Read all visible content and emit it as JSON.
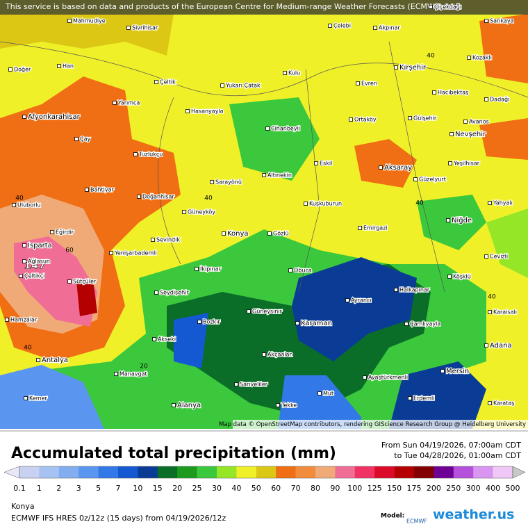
{
  "header": {
    "attribution": "This service is based on data and products of the European Centre for Medium-range Weather Forecasts (ECMWF)"
  },
  "map": {
    "cities": [
      "Çiçekdağı",
      "Mahmudiye",
      "Sivrihisar",
      "Çelebi",
      "Akpınar",
      "Sarıkaya",
      "Doğer",
      "Han",
      "Kulu",
      "Kırşehir",
      "Kozaklı",
      "Çeltik",
      "Yukarı Çatak",
      "Evren",
      "Hacıbektaş",
      "Yarımca",
      "Hasanyayla",
      "Dadağı",
      "Afyonkarahisar",
      "Cihanbeyli",
      "Ortaköy",
      "Gülşehir",
      "Avanos",
      "Nevşehir",
      "Çay",
      "Tuzlukçu",
      "Eskil",
      "Aksaray",
      "Yeşilhisar",
      "Altınekin",
      "Bahtiyar",
      "Sarayönü",
      "Güzelyurt",
      "Doğanhisar",
      "Uluborlu",
      "Kuşkuburun",
      "Yahyalı",
      "Güneyköy",
      "Niğde",
      "Eğirdir",
      "Konya",
      "Gözlü",
      "Emirgazi",
      "Isparta",
      "Sevindik",
      "Yenişarbademli",
      "Cevizli",
      "Ağlasun",
      "İkipınar",
      "Obuca",
      "Çeltikçi",
      "Sütçüler",
      "Köşklü",
      "Halkapınar",
      "Seydişehir",
      "Ayrancı",
      "Karaisalı",
      "Hamzalar",
      "Bozkır",
      "Güneysınır",
      "Karaman",
      "Çamlıyayla",
      "Akseki",
      "Adana",
      "Akçaalan",
      "Antalya",
      "Manavgat",
      "Mersin",
      "Ayaştürkmenli",
      "Sarıveliler",
      "Kemer",
      "Mut",
      "Erdemli",
      "Alanya",
      "Tekke",
      "Karataş"
    ],
    "contour_labels": [
      "40",
      "40",
      "40",
      "40",
      "40",
      "60",
      "20",
      "40"
    ],
    "max_label": "147",
    "credits": "Map data © OpenStreetMap contributors, rendering GIScience Research Group @ Heidelberg University"
  },
  "panel": {
    "title": "Accumulated total precipitation (mm)",
    "from": "From Sun 04/19/2026, 07:00am CDT",
    "to": "to Tue 04/28/2026, 01:00am CDT",
    "legend": {
      "labels": [
        "0.1",
        "1",
        "2",
        "3",
        "5",
        "7",
        "10",
        "15",
        "20",
        "25",
        "30",
        "40",
        "50",
        "60",
        "70",
        "80",
        "90",
        "100",
        "125",
        "150",
        "175",
        "200",
        "250",
        "300",
        "400",
        "500"
      ],
      "colors": [
        "#e8e8f8",
        "#c8d2f0",
        "#a6c2f2",
        "#82aef0",
        "#5a96f0",
        "#3278e6",
        "#1458d2",
        "#0a3c96",
        "#0a6e28",
        "#1e9b1e",
        "#3cc83c",
        "#96e628",
        "#f0f028",
        "#dcc814",
        "#f06e14",
        "#f08c3c",
        "#f0aa78",
        "#f06e96",
        "#f03264",
        "#dc0a28",
        "#b40000",
        "#820000",
        "#6e0096",
        "#b450dc",
        "#d896f0",
        "#f0c8f8",
        "#c8c8c8"
      ]
    },
    "location": "Konya",
    "model_run": "ECMWF IFS HRES 0z/12z (15 days) from  04/19/2026/12z",
    "model_label": "Model:",
    "model_name": "ECMWF",
    "brand": "weather.us"
  }
}
